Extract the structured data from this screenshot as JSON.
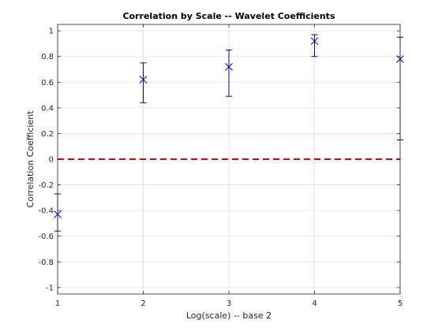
{
  "chart_data": {
    "type": "scatter",
    "title": "Correlation by Scale -- Wavelet Coefficients",
    "xlabel": "Log(scale) -- base 2",
    "ylabel": "Correlation Coefficient",
    "xlim": [
      1,
      5
    ],
    "ylim": [
      -1.05,
      1.05
    ],
    "x_ticks": [
      1,
      2,
      3,
      4,
      5
    ],
    "x_tick_labels": [
      "1",
      "2",
      "3",
      "4",
      "5"
    ],
    "y_ticks": [
      -1,
      -0.8,
      -0.6,
      -0.4,
      -0.2,
      0,
      0.2,
      0.4,
      0.6,
      0.8,
      1
    ],
    "y_tick_labels": [
      "-1",
      "-0.8",
      "-0.6",
      "-0.4",
      "-0.2",
      "0",
      "0.2",
      "0.4",
      "0.6",
      "0.8",
      "1"
    ],
    "grid": true,
    "series": [
      {
        "marker": "x",
        "color": "#0000cc",
        "points": [
          {
            "x": 1,
            "y": -0.43,
            "lower": -0.56,
            "upper": -0.27
          },
          {
            "x": 2,
            "y": 0.62,
            "lower": 0.44,
            "upper": 0.75
          },
          {
            "x": 3,
            "y": 0.72,
            "lower": 0.49,
            "upper": 0.85
          },
          {
            "x": 4,
            "y": 0.92,
            "lower": 0.8,
            "upper": 0.97
          },
          {
            "x": 5,
            "y": 0.78,
            "lower": 0.15,
            "upper": 0.95
          }
        ]
      }
    ],
    "reference_line": {
      "y": 0,
      "color": "#dd0000",
      "style": "dashed"
    }
  }
}
